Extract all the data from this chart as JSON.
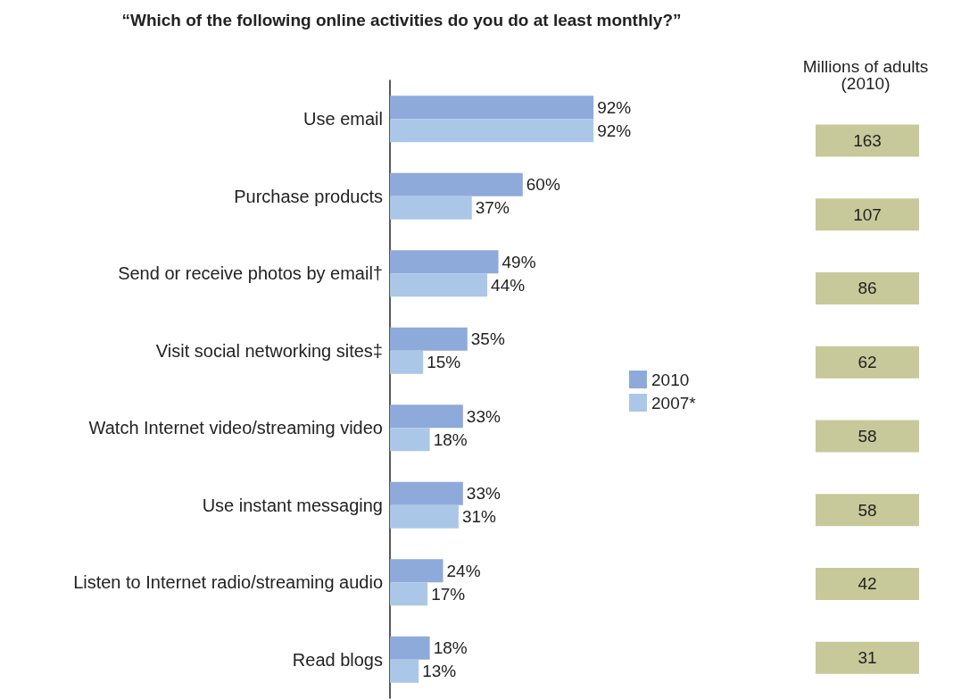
{
  "chart_data": [
    {
      "type": "bar",
      "orientation": "horizontal",
      "title": "“Which of the following online activities do you do at least monthly?”",
      "categories": [
        "Use email",
        "Purchase products",
        "Send or receive photos by email†",
        "Visit social networking sites‡",
        "Watch Internet video/streaming video",
        "Use instant messaging",
        "Listen to Internet radio/streaming audio",
        "Read blogs"
      ],
      "series": [
        {
          "name": "2010",
          "color": "#8eaadb",
          "values": [
            92,
            60,
            49,
            35,
            33,
            33,
            24,
            18
          ],
          "value_labels": [
            "92%",
            "60%",
            "49%",
            "35%",
            "33%",
            "33%",
            "24%",
            "18%"
          ]
        },
        {
          "name": "2007*",
          "color": "#abc7e8",
          "values": [
            92,
            37,
            44,
            15,
            18,
            31,
            17,
            13
          ],
          "value_labels": [
            "92%",
            "37%",
            "44%",
            "15%",
            "18%",
            "31%",
            "17%",
            "13%"
          ]
        }
      ],
      "legend": "right"
    },
    {
      "type": "other",
      "title": "Millions of adults",
      "subtitle": "(2010)",
      "categories": [
        null,
        null,
        null,
        null,
        null,
        null,
        null,
        null
      ],
      "values": [
        163,
        107,
        86,
        62,
        58,
        58,
        42,
        31
      ],
      "color": "#c8c99a",
      "data_labels": true
    }
  ]
}
